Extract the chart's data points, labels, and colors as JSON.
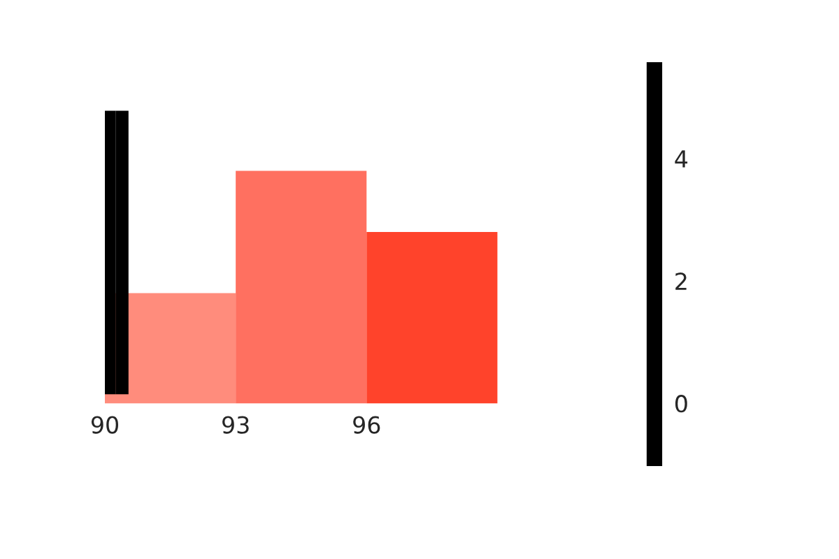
{
  "chart_data": {
    "type": "histogram",
    "bins": [
      90,
      93,
      96,
      99
    ],
    "xlim": [
      90,
      102.6
    ],
    "values": [
      1.8,
      3.8,
      2.8
    ],
    "colors": [
      "#ff8c7c",
      "#ff7060",
      "#ff432b"
    ],
    "xticks": [
      90,
      93,
      96
    ],
    "ylim": [
      -0.9,
      5.45
    ],
    "yticks": [
      0,
      2,
      4
    ],
    "grid": false
  }
}
